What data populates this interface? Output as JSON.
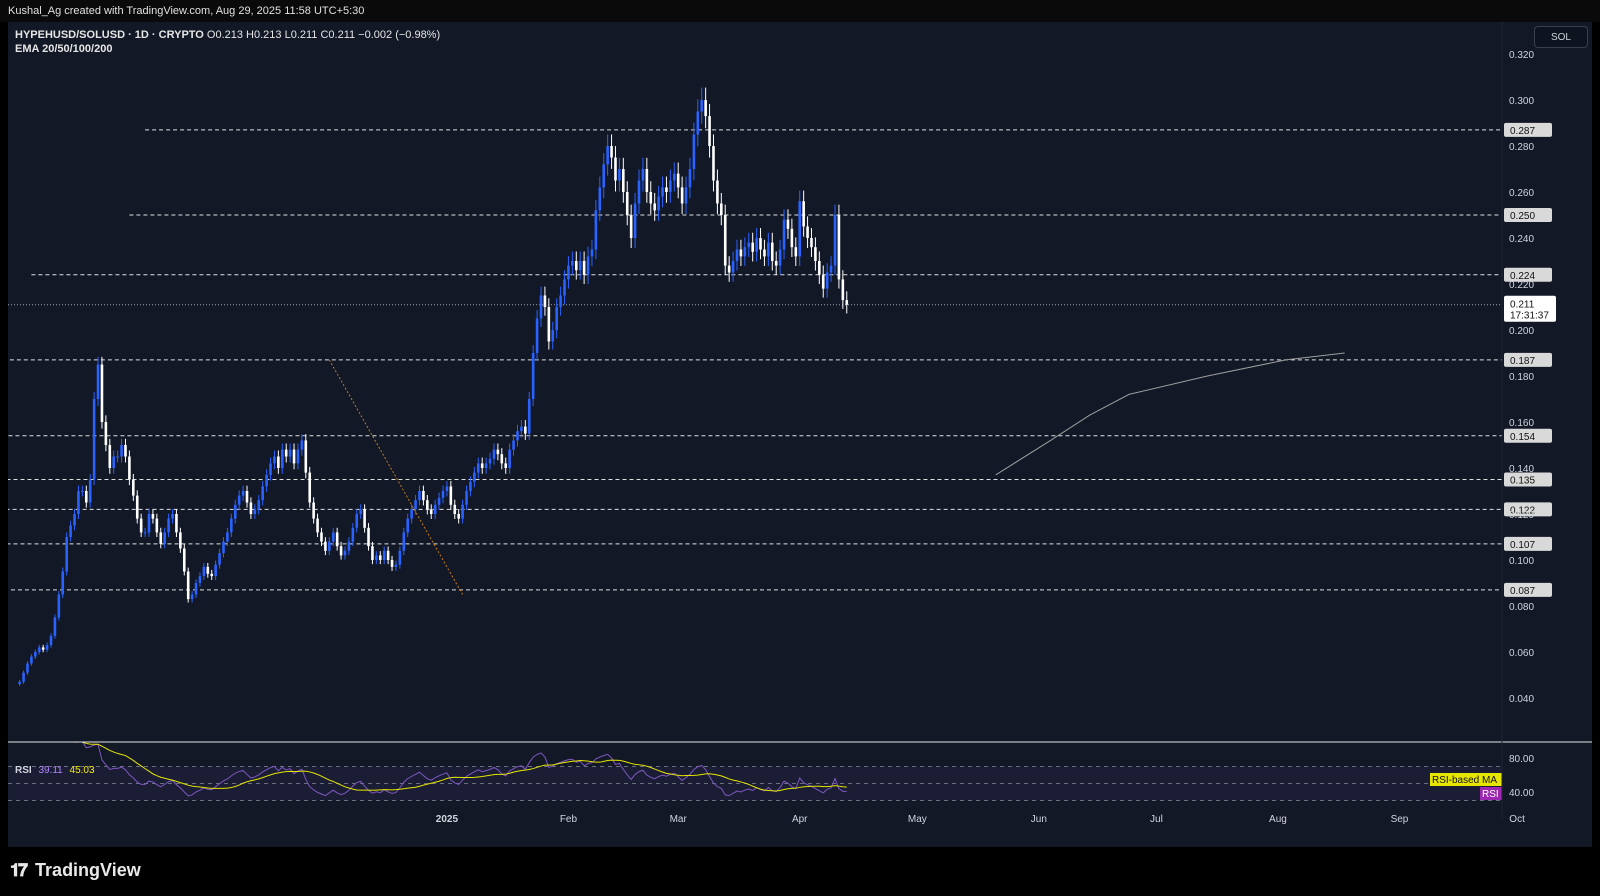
{
  "attribution": "Kushal_Ag created with TradingView.com, Aug 29, 2025 11:58 UTC+5:30",
  "legend": {
    "symbol": "HYPEHUSD/SOLUSD · 1D · CRYPTO",
    "ohlc": "O0.213  H0.213  L0.211  C0.211  −0.002 (−0.98%)",
    "indicator": "EMA 20/50/100/200"
  },
  "currency_badge": "SOL",
  "rsi_legend": {
    "label": "RSI",
    "value1": "39.11",
    "value2": "45.03"
  },
  "brand": "TradingView",
  "colors": {
    "background": "#121826",
    "up": "#2962ff",
    "down": "#ffffff",
    "rsi": "#7e57c2",
    "rsi_ma": "#e6e600",
    "ema": "#9e9e9e",
    "trendline": "#c67a1a"
  },
  "chart_data": {
    "type": "candlestick",
    "title": "HYPEHUSD/SOLUSD · 1D · CRYPTO",
    "y_axis_ticks": [
      "0.320",
      "0.300",
      "0.280",
      "0.260",
      "0.240",
      "0.220",
      "0.200",
      "0.180",
      "0.160",
      "0.140",
      "0.120",
      "0.100",
      "0.080",
      "0.060",
      "0.040"
    ],
    "y_tick_values": [
      0.32,
      0.3,
      0.28,
      0.26,
      0.24,
      0.22,
      0.2,
      0.18,
      0.16,
      0.14,
      0.12,
      0.1,
      0.08,
      0.06,
      0.04
    ],
    "ylim": [
      0.02,
      0.33
    ],
    "x_axis_labels": [
      "2025",
      "Feb",
      "Mar",
      "Apr",
      "May",
      "Jun",
      "Jul",
      "Aug",
      "Sep",
      "Oct"
    ],
    "x_axis_day": [
      26,
      57,
      85,
      116,
      146,
      177,
      207,
      238,
      269,
      299
    ],
    "first_day_offset": -83,
    "last_price": "0.211",
    "countdown": "17:31:37",
    "horizontal_levels": [
      {
        "label": "0.287",
        "value": 0.287,
        "from_day": -51
      },
      {
        "label": "0.250",
        "value": 0.25,
        "from_day": -55
      },
      {
        "label": "0.224",
        "value": 0.224,
        "from_day": -80
      },
      {
        "label": "0.187",
        "value": 0.187,
        "from_day": -148
      },
      {
        "label": "0.154",
        "value": 0.154,
        "from_day": -193
      },
      {
        "label": "0.135",
        "value": 0.135,
        "from_day": -206
      },
      {
        "label": "0.122",
        "value": 0.122,
        "from_day": -208
      },
      {
        "label": "0.107",
        "value": 0.107,
        "from_day": -206
      },
      {
        "label": "0.087",
        "value": 0.087,
        "from_day": -162
      }
    ],
    "trendline": {
      "from": [
        -4,
        0.187
      ],
      "to": [
        30,
        0.085
      ]
    },
    "ema200": [
      [
        166,
        0.137
      ],
      [
        180,
        0.152
      ],
      [
        190,
        0.163
      ],
      [
        200,
        0.172
      ],
      [
        220,
        0.18
      ],
      [
        240,
        0.187
      ],
      [
        255,
        0.19
      ]
    ],
    "closes": [
      0.047,
      0.051,
      0.055,
      0.058,
      0.06,
      0.062,
      0.061,
      0.063,
      0.067,
      0.075,
      0.085,
      0.095,
      0.11,
      0.115,
      0.12,
      0.13,
      0.13,
      0.125,
      0.135,
      0.17,
      0.185,
      0.16,
      0.15,
      0.14,
      0.145,
      0.145,
      0.15,
      0.145,
      0.135,
      0.128,
      0.118,
      0.112,
      0.112,
      0.12,
      0.118,
      0.112,
      0.107,
      0.112,
      0.118,
      0.12,
      0.112,
      0.105,
      0.095,
      0.083,
      0.085,
      0.09,
      0.093,
      0.097,
      0.094,
      0.093,
      0.098,
      0.103,
      0.108,
      0.112,
      0.118,
      0.124,
      0.128,
      0.13,
      0.125,
      0.12,
      0.122,
      0.126,
      0.132,
      0.137,
      0.142,
      0.145,
      0.14,
      0.148,
      0.145,
      0.148,
      0.142,
      0.148,
      0.152,
      0.138,
      0.125,
      0.118,
      0.112,
      0.108,
      0.104,
      0.108,
      0.112,
      0.106,
      0.102,
      0.104,
      0.108,
      0.114,
      0.12,
      0.122,
      0.114,
      0.106,
      0.1,
      0.102,
      0.1,
      0.104,
      0.1,
      0.097,
      0.098,
      0.104,
      0.112,
      0.118,
      0.122,
      0.126,
      0.13,
      0.126,
      0.122,
      0.12,
      0.124,
      0.127,
      0.13,
      0.132,
      0.124,
      0.12,
      0.118,
      0.124,
      0.13,
      0.134,
      0.138,
      0.142,
      0.14,
      0.142,
      0.144,
      0.148,
      0.146,
      0.142,
      0.14,
      0.148,
      0.152,
      0.156,
      0.158,
      0.155,
      0.17,
      0.19,
      0.205,
      0.215,
      0.21,
      0.195,
      0.2,
      0.21,
      0.215,
      0.222,
      0.228,
      0.23,
      0.226,
      0.23,
      0.224,
      0.232,
      0.235,
      0.252,
      0.262,
      0.272,
      0.28,
      0.275,
      0.265,
      0.27,
      0.26,
      0.25,
      0.24,
      0.255,
      0.265,
      0.27,
      0.26,
      0.255,
      0.252,
      0.258,
      0.262,
      0.26,
      0.265,
      0.268,
      0.262,
      0.255,
      0.262,
      0.27,
      0.285,
      0.295,
      0.3,
      0.293,
      0.28,
      0.265,
      0.255,
      0.25,
      0.228,
      0.225,
      0.23,
      0.235,
      0.232,
      0.236,
      0.238,
      0.234,
      0.24,
      0.235,
      0.232,
      0.238,
      0.23,
      0.228,
      0.235,
      0.248,
      0.244,
      0.236,
      0.232,
      0.256,
      0.245,
      0.24,
      0.236,
      0.23,
      0.224,
      0.218,
      0.225,
      0.228,
      0.25,
      0.222,
      0.213,
      0.211
    ]
  }
}
